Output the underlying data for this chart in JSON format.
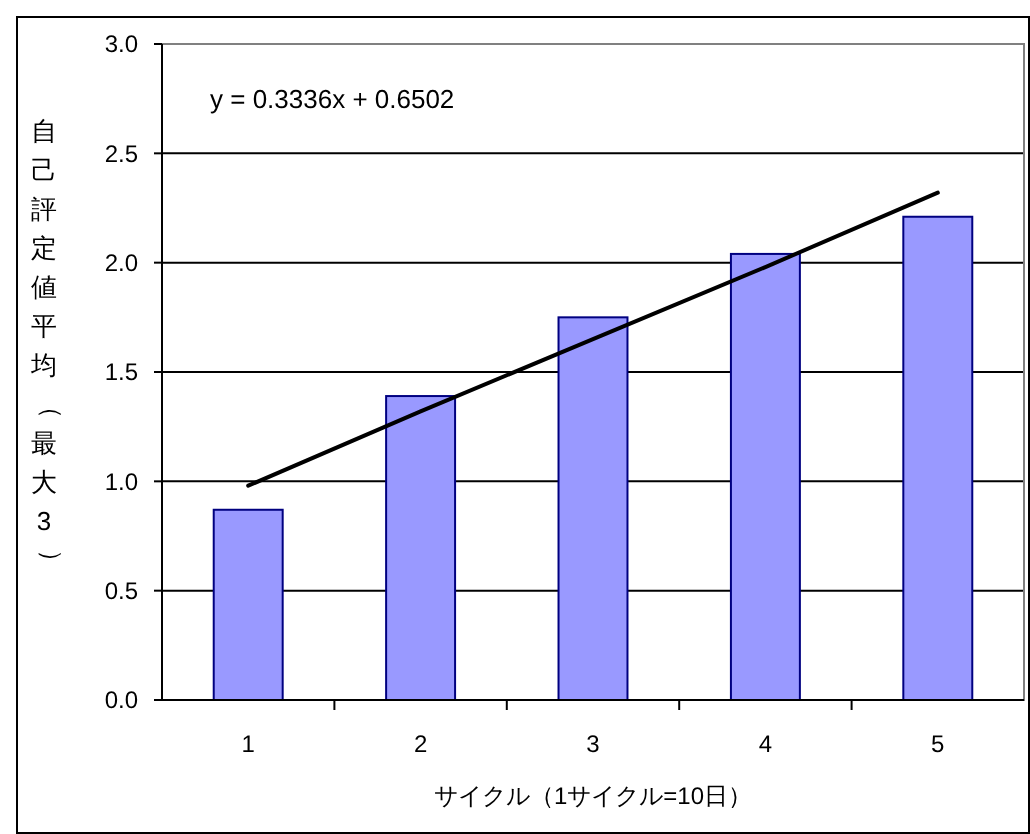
{
  "chart_data": {
    "type": "bar",
    "xlabel": "サイクル（1サイクル=10日）",
    "ylabel": "自己評定値平均（最大3）",
    "categories": [
      "1",
      "2",
      "3",
      "4",
      "5"
    ],
    "series": [
      {
        "color": "#9999ff",
        "values": [
          0.87,
          1.39,
          1.75,
          2.04,
          2.21
        ]
      },
      {
        "type": "line",
        "color": "#000000",
        "values": [
          0.98,
          1.32,
          1.65,
          1.98,
          2.32
        ]
      }
    ],
    "annotations": [
      "y = 0.3336x + 0.6502"
    ],
    "ylim": [
      0,
      3
    ],
    "yticks": [
      {
        "value": 0,
        "label": "0.0"
      },
      {
        "value": 0.5,
        "label": "0.5"
      },
      {
        "value": 1,
        "label": "1.0"
      },
      {
        "value": 1.5,
        "label": "1.5"
      },
      {
        "value": 2,
        "label": "2.0"
      },
      {
        "value": 2.5,
        "label": "2.5"
      },
      {
        "value": 3,
        "label": "3.0"
      }
    ],
    "grid": "y"
  }
}
